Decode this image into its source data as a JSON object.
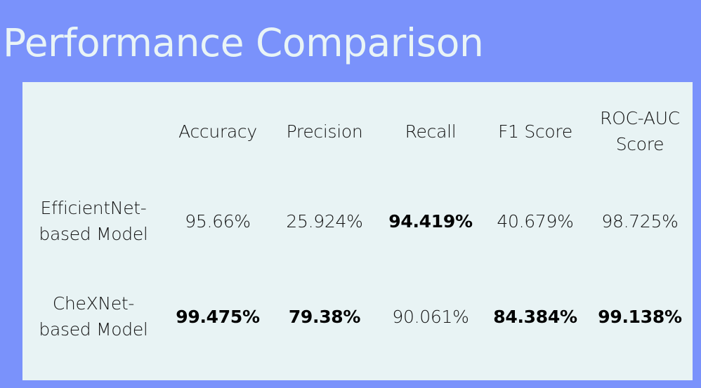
{
  "title": "Performance Comparison",
  "table": {
    "columns": [
      "",
      "Accuracy",
      "Precision",
      "Recall",
      "F1 Score",
      "ROC-AUC Score"
    ],
    "header_lines": {
      "roc_auc": [
        "ROC-AUC",
        "Score"
      ]
    },
    "rows": [
      {
        "label": "EfficientNet-based Model",
        "label_lines": [
          "EfficientNet-",
          "based Model"
        ],
        "values": [
          "95.66%",
          "25.924%",
          "94.419%",
          "40.679%",
          "98.725%"
        ],
        "bold": [
          false,
          false,
          true,
          false,
          false
        ]
      },
      {
        "label": "CheXNet-based Model",
        "label_lines": [
          "CheXNet-",
          "based Model"
        ],
        "values": [
          "99.475%",
          "79.38%",
          "90.061%",
          "84.384%",
          "99.138%"
        ],
        "bold": [
          true,
          true,
          false,
          true,
          true
        ]
      }
    ]
  }
}
